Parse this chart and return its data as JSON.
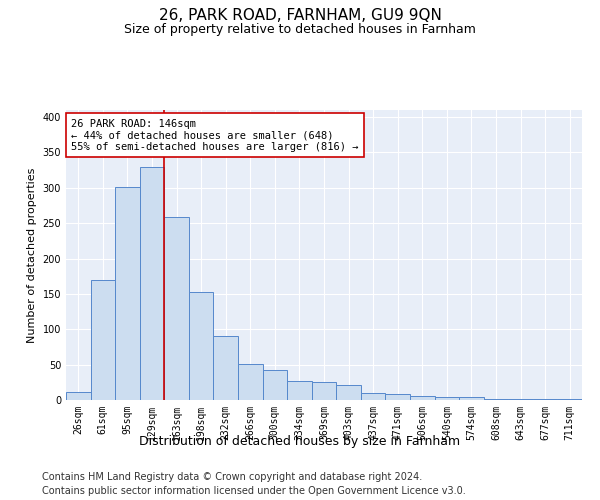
{
  "title1": "26, PARK ROAD, FARNHAM, GU9 9QN",
  "title2": "Size of property relative to detached houses in Farnham",
  "xlabel": "Distribution of detached houses by size in Farnham",
  "ylabel": "Number of detached properties",
  "categories": [
    "26sqm",
    "61sqm",
    "95sqm",
    "129sqm",
    "163sqm",
    "198sqm",
    "232sqm",
    "266sqm",
    "300sqm",
    "334sqm",
    "369sqm",
    "403sqm",
    "437sqm",
    "471sqm",
    "506sqm",
    "540sqm",
    "574sqm",
    "608sqm",
    "643sqm",
    "677sqm",
    "711sqm"
  ],
  "values": [
    11,
    170,
    301,
    329,
    259,
    152,
    91,
    51,
    43,
    27,
    26,
    21,
    10,
    9,
    5,
    4,
    4,
    1,
    2,
    1,
    2
  ],
  "bar_color": "#ccddf0",
  "bar_edge_color": "#5588cc",
  "vline_color": "#cc0000",
  "vline_pos": 3.5,
  "annotation_text": "26 PARK ROAD: 146sqm\n← 44% of detached houses are smaller (648)\n55% of semi-detached houses are larger (816) →",
  "annotation_box_color": "#ffffff",
  "annotation_box_edge": "#cc0000",
  "footer1": "Contains HM Land Registry data © Crown copyright and database right 2024.",
  "footer2": "Contains public sector information licensed under the Open Government Licence v3.0.",
  "ylim": [
    0,
    410
  ],
  "yticks": [
    0,
    50,
    100,
    150,
    200,
    250,
    300,
    350,
    400
  ],
  "plot_bg": "#e8eef8",
  "title1_fontsize": 11,
  "title2_fontsize": 9,
  "ylabel_fontsize": 8,
  "xlabel_fontsize": 9,
  "tick_fontsize": 7,
  "footer_fontsize": 7,
  "annot_fontsize": 7.5
}
